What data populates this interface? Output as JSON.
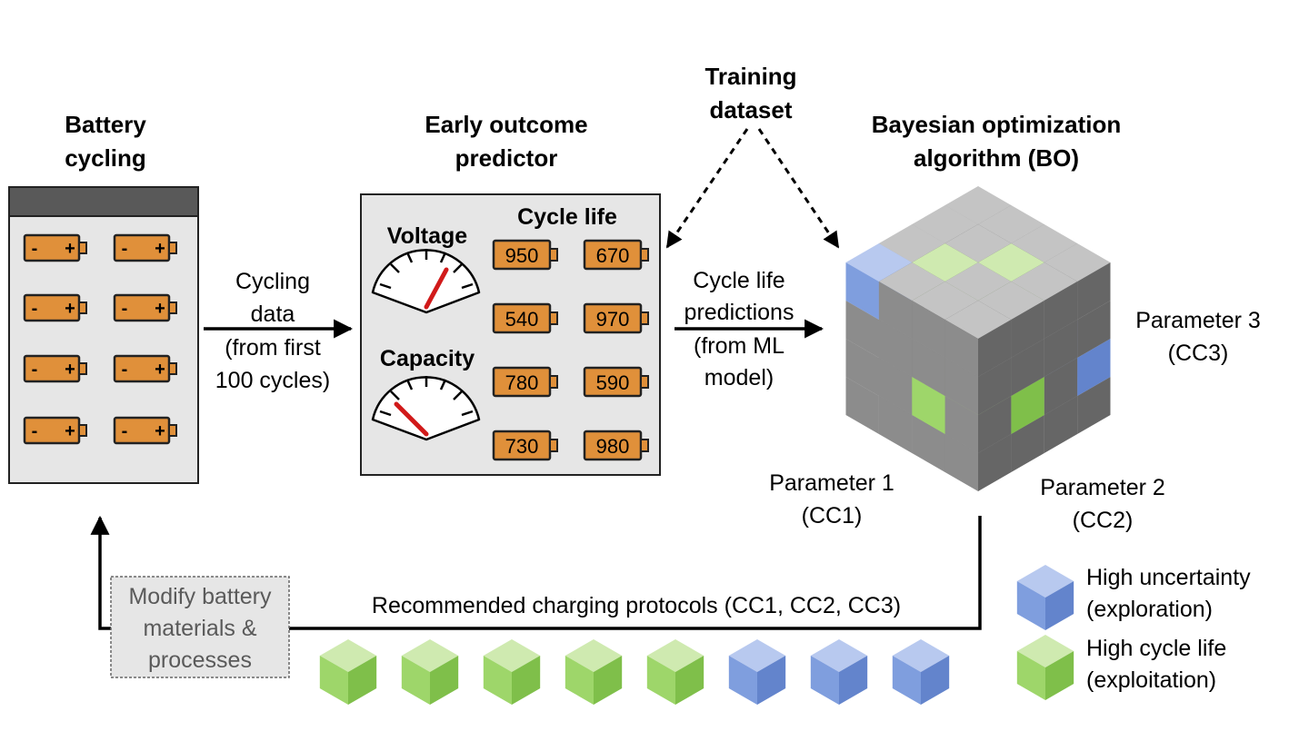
{
  "battery_cycling": {
    "title_line1": "Battery",
    "title_line2": "cycling",
    "cell_minus": "-",
    "cell_plus": "+"
  },
  "arrow_cycling": {
    "line1": "Cycling",
    "line2": "data",
    "line3": "(from first",
    "line4": "100 cycles)"
  },
  "predictor": {
    "title_line1": "Early outcome",
    "title_line2": "predictor",
    "voltage_label": "Voltage",
    "capacity_label": "Capacity",
    "cycle_life_label": "Cycle life",
    "values": [
      "950",
      "670",
      "540",
      "970",
      "780",
      "590",
      "730",
      "980"
    ]
  },
  "training": {
    "line1": "Training",
    "line2": "dataset"
  },
  "arrow_predictions": {
    "line1": "Cycle life",
    "line2": "predictions",
    "line3": "(from ML",
    "line4": "model)"
  },
  "bo": {
    "title_line1": "Bayesian optimization",
    "title_line2": "algorithm (BO)",
    "param1_line1": "Parameter 1",
    "param1_line2": "(CC1)",
    "param2_line1": "Parameter 2",
    "param2_line2": "(CC2)",
    "param3_line1": "Parameter 3",
    "param3_line2": "(CC3)"
  },
  "feedback": {
    "modify_line1": "Modify battery",
    "modify_line2": "materials &",
    "modify_line3": "processes",
    "recommended": "Recommended charging protocols (CC1, CC2, CC3)"
  },
  "legend": {
    "uncertainty_line1": "High uncertainty",
    "uncertainty_line2": "(exploration)",
    "cyclelife_line1": "High cycle life",
    "cyclelife_line2": "(exploitation)"
  },
  "protocol_cubes": [
    "green",
    "green",
    "green",
    "green",
    "green",
    "blue",
    "blue",
    "blue"
  ],
  "colors": {
    "battery_orange": "#e0903a",
    "cube_grey": "#8c8c8c",
    "cube_green": "#9ed66a",
    "cube_blue": "#7f9ede",
    "panel_grey": "#e6e6e6",
    "header_dark": "#595959",
    "needle_red": "#d11a1a"
  }
}
